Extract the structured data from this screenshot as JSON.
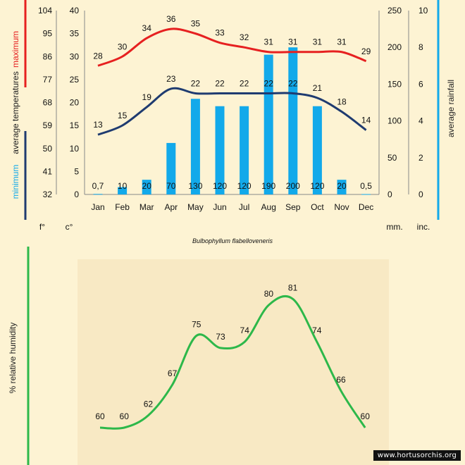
{
  "chart_data": [
    {
      "type": "bar+line",
      "title": "Bulbophyllum flabelloveneris",
      "categories": [
        "Jan",
        "Feb",
        "Mar",
        "Apr",
        "May",
        "Jun",
        "Jul",
        "Aug",
        "Sep",
        "Oct",
        "Nov",
        "Dec"
      ],
      "rainfall_mm": {
        "label": "average rainfall",
        "values": [
          0.7,
          10,
          20,
          70,
          130,
          120,
          120,
          190,
          200,
          120,
          20,
          0.5
        ],
        "value_labels": [
          "0,7",
          "10",
          "20",
          "70",
          "130",
          "120",
          "120",
          "190",
          "200",
          "120",
          "20",
          "0,5"
        ],
        "color": "#12a9ea"
      },
      "max_temp_c": {
        "label": "maximum",
        "values": [
          28,
          30,
          34,
          36,
          35,
          33,
          32,
          31,
          31,
          31,
          31,
          29
        ],
        "color": "#e62020"
      },
      "min_temp_c": {
        "label": "minimum",
        "values": [
          13,
          15,
          19,
          23,
          22,
          22,
          22,
          22,
          22,
          21,
          18,
          14
        ],
        "color": "#1f3b70"
      },
      "ylabel_left": "average temperatures",
      "left_axis_f": {
        "ticks": [
          "104",
          "95",
          "86",
          "77",
          "68",
          "59",
          "50",
          "41",
          "32"
        ],
        "unit": "f°"
      },
      "left_axis_c": {
        "ticks": [
          "40",
          "35",
          "30",
          "25",
          "20",
          "15",
          "10",
          "5",
          "0"
        ],
        "unit": "c°",
        "ylim": [
          0,
          40
        ]
      },
      "right_axis_mm": {
        "ticks": [
          "250",
          "200",
          "150",
          "100",
          "50",
          "0"
        ],
        "unit": "mm.",
        "ylim": [
          0,
          250
        ]
      },
      "right_axis_inc": {
        "ticks": [
          "10",
          "8",
          "6",
          "4",
          "2",
          "0"
        ],
        "unit": "inc."
      },
      "ylabel_right": "average rainfall",
      "grid": false
    },
    {
      "type": "line",
      "series_name": "% relative humidity",
      "categories": [
        "Jan",
        "Feb",
        "Mar",
        "Apr",
        "May",
        "Jun",
        "Jul",
        "Aug",
        "Sep",
        "Oct",
        "Nov",
        "Dec"
      ],
      "values": [
        60,
        60,
        62,
        67,
        75,
        73,
        74,
        80,
        81,
        74,
        66,
        60
      ],
      "color": "#2db84a",
      "panel_color": "#f8e9c4"
    }
  ],
  "credit": "www.hortusorchis.org"
}
